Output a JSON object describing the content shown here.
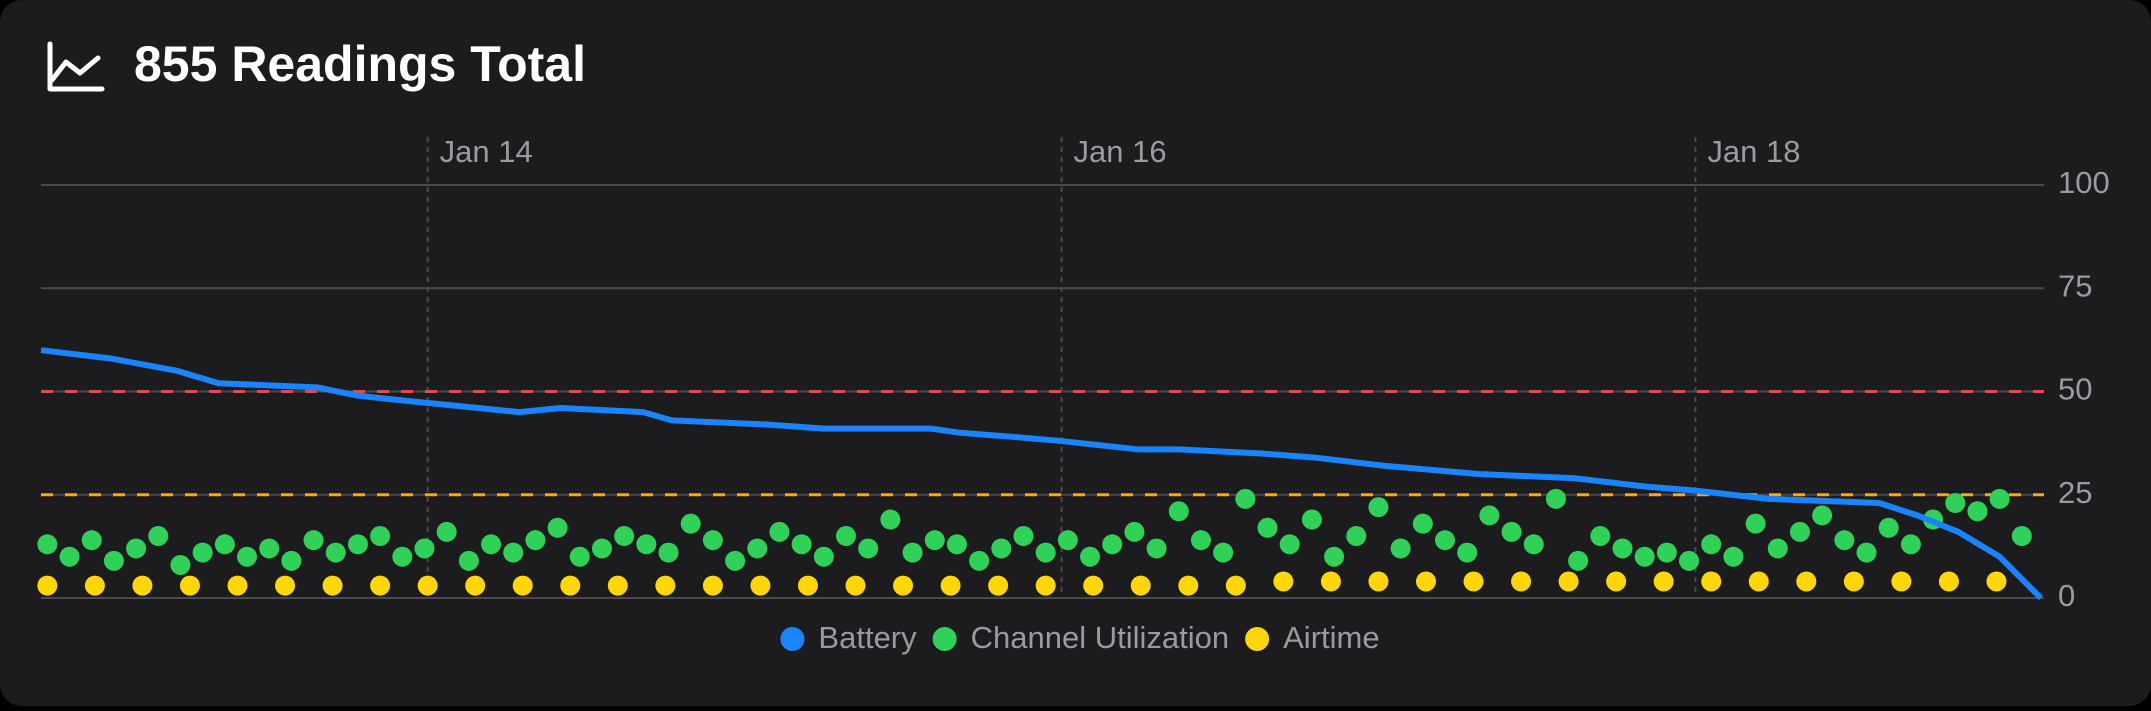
{
  "chart_data": {
    "type": "combo",
    "title": "855 Readings Total",
    "xlim": [
      12.78,
      19.1
    ],
    "xticks": [
      {
        "value": 14,
        "label": "Jan 14"
      },
      {
        "value": 16,
        "label": "Jan 16"
      },
      {
        "value": 18,
        "label": "Jan 18"
      }
    ],
    "ylim": [
      0,
      100
    ],
    "yticks": [
      0,
      25,
      50,
      75,
      100
    ],
    "grid": true,
    "y_axis_side": "right",
    "thresholds": [
      {
        "value": 50,
        "color": "#e5484d"
      },
      {
        "value": 25,
        "color": "#f5a623"
      }
    ],
    "series": [
      {
        "name": "Battery",
        "color": "#1a84ff",
        "kind": "line",
        "x": [
          12.78,
          13.0,
          13.21,
          13.34,
          13.65,
          13.78,
          13.9,
          14.16,
          14.29,
          14.42,
          14.68,
          14.77,
          15.07,
          15.25,
          15.59,
          15.68,
          15.85,
          16.0,
          16.24,
          16.37,
          16.63,
          16.8,
          17.02,
          17.32,
          17.62,
          17.84,
          18.0,
          18.23,
          18.58,
          18.7,
          18.83,
          18.96,
          19.09
        ],
        "values": [
          60,
          58,
          55,
          52,
          51,
          49,
          48,
          46,
          45,
          46,
          45,
          43,
          42,
          41,
          41,
          40,
          39,
          38,
          36,
          36,
          35,
          34,
          32,
          30,
          29,
          27,
          26,
          24,
          23,
          20,
          16,
          10,
          0
        ]
      },
      {
        "name": "Channel Utilization",
        "color": "#30d158",
        "kind": "scatter",
        "x": [
          12.8,
          12.87,
          12.94,
          13.01,
          13.08,
          13.15,
          13.22,
          13.29,
          13.36,
          13.43,
          13.5,
          13.57,
          13.64,
          13.71,
          13.78,
          13.85,
          13.92,
          13.99,
          14.06,
          14.13,
          14.2,
          14.27,
          14.34,
          14.41,
          14.48,
          14.55,
          14.62,
          14.69,
          14.76,
          14.83,
          14.9,
          14.97,
          15.04,
          15.11,
          15.18,
          15.25,
          15.32,
          15.39,
          15.46,
          15.53,
          15.6,
          15.67,
          15.74,
          15.81,
          15.88,
          15.95,
          16.02,
          16.09,
          16.16,
          16.23,
          16.3,
          16.37,
          16.44,
          16.51,
          16.58,
          16.65,
          16.72,
          16.79,
          16.86,
          16.93,
          17.0,
          17.07,
          17.14,
          17.21,
          17.28,
          17.35,
          17.42,
          17.49,
          17.56,
          17.63,
          17.7,
          17.77,
          17.84,
          17.91,
          17.98,
          18.05,
          18.12,
          18.19,
          18.26,
          18.33,
          18.4,
          18.47,
          18.54,
          18.61,
          18.68,
          18.75,
          18.82,
          18.89,
          18.96,
          19.03
        ],
        "values": [
          13,
          10,
          14,
          9,
          12,
          15,
          8,
          11,
          13,
          10,
          12,
          9,
          14,
          11,
          13,
          15,
          10,
          12,
          16,
          9,
          13,
          11,
          14,
          17,
          10,
          12,
          15,
          13,
          11,
          18,
          14,
          9,
          12,
          16,
          13,
          10,
          15,
          12,
          19,
          11,
          14,
          13,
          9,
          12,
          15,
          11,
          14,
          10,
          13,
          16,
          12,
          21,
          14,
          11,
          24,
          17,
          13,
          19,
          10,
          15,
          22,
          12,
          18,
          14,
          11,
          20,
          16,
          13,
          24,
          9,
          15,
          12,
          10,
          11,
          9,
          13,
          10,
          18,
          12,
          16,
          20,
          14,
          11,
          17,
          13,
          19,
          23,
          21,
          24,
          15
        ]
      },
      {
        "name": "Airtime",
        "color": "#ffd60a",
        "kind": "scatter",
        "x": [
          12.8,
          12.95,
          13.1,
          13.25,
          13.4,
          13.55,
          13.7,
          13.85,
          14.0,
          14.15,
          14.3,
          14.45,
          14.6,
          14.75,
          14.9,
          15.05,
          15.2,
          15.35,
          15.5,
          15.65,
          15.8,
          15.95,
          16.1,
          16.25,
          16.4,
          16.55,
          16.7,
          16.85,
          17.0,
          17.15,
          17.3,
          17.45,
          17.6,
          17.75,
          17.9,
          18.05,
          18.2,
          18.35,
          18.5,
          18.65,
          18.8,
          18.95
        ],
        "values": [
          3,
          3,
          3,
          3,
          3,
          3,
          3,
          3,
          3,
          3,
          3,
          3,
          3,
          3,
          3,
          3,
          3,
          3,
          3,
          3,
          3,
          3,
          3,
          3,
          3,
          3,
          4,
          4,
          4,
          4,
          4,
          4,
          4,
          4,
          4,
          4,
          4,
          4,
          4,
          4,
          4,
          4
        ]
      }
    ]
  }
}
